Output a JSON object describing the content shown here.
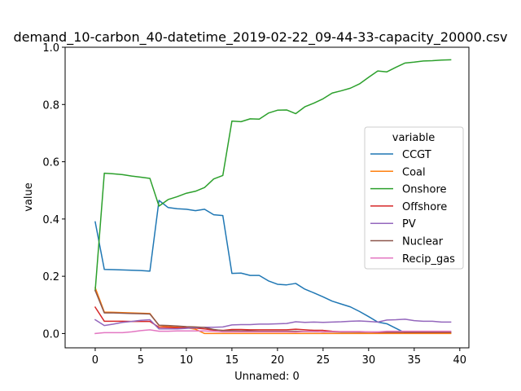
{
  "chart_data": {
    "type": "line",
    "title": "demand_10-carbon_40-datetime_2019-02-22_09-44-33-capacity_20000.csv",
    "xlabel": "Unnamed: 0",
    "ylabel": "value",
    "xlim": [
      -3.3,
      41.0
    ],
    "ylim": [
      -0.05,
      1.0
    ],
    "xticks": [
      0,
      5,
      10,
      15,
      20,
      25,
      30,
      35,
      40
    ],
    "yticks": [
      0.0,
      0.2,
      0.4,
      0.6,
      0.8,
      1.0
    ],
    "grid": false,
    "legend": {
      "title": "variable",
      "position": "center-right"
    },
    "x": [
      0,
      1,
      2,
      3,
      4,
      5,
      6,
      7,
      8,
      9,
      10,
      11,
      12,
      13,
      14,
      15,
      16,
      17,
      18,
      19,
      20,
      21,
      22,
      23,
      24,
      25,
      26,
      27,
      28,
      29,
      30,
      31,
      32,
      33,
      34,
      35,
      36,
      37,
      38,
      39
    ],
    "series": [
      {
        "name": "CCGT",
        "color": "#1f77b4",
        "values": [
          0.39,
          0.224,
          0.223,
          0.222,
          0.221,
          0.22,
          0.218,
          0.465,
          0.44,
          0.436,
          0.434,
          0.429,
          0.434,
          0.415,
          0.412,
          0.21,
          0.211,
          0.203,
          0.203,
          0.184,
          0.172,
          0.17,
          0.175,
          0.155,
          0.142,
          0.128,
          0.113,
          0.103,
          0.093,
          0.077,
          0.059,
          0.04,
          0.034,
          0.018,
          0.002,
          0.001,
          0.001,
          0.001,
          0.001,
          0.001
        ]
      },
      {
        "name": "Coal",
        "color": "#ff7f0e",
        "values": [
          0.16,
          0.075,
          0.074,
          0.073,
          0.072,
          0.071,
          0.07,
          0.028,
          0.024,
          0.022,
          0.02,
          0.015,
          0.0,
          0.0,
          0.0,
          0.0,
          0.0,
          0.0,
          0.0,
          0.0,
          0.0,
          0.0,
          0.0,
          0.0,
          0.0,
          0.0,
          0.0,
          0.0,
          0.0,
          0.0,
          0.0,
          0.0,
          0.0,
          0.0,
          0.0,
          0.0,
          0.0,
          0.0,
          0.0,
          0.0
        ]
      },
      {
        "name": "Onshore",
        "color": "#2ca02c",
        "values": [
          0.15,
          0.56,
          0.558,
          0.555,
          0.55,
          0.546,
          0.542,
          0.445,
          0.468,
          0.478,
          0.49,
          0.497,
          0.51,
          0.54,
          0.552,
          0.742,
          0.74,
          0.75,
          0.749,
          0.77,
          0.78,
          0.781,
          0.768,
          0.792,
          0.805,
          0.82,
          0.84,
          0.848,
          0.857,
          0.872,
          0.895,
          0.917,
          0.914,
          0.93,
          0.945,
          0.948,
          0.952,
          0.953,
          0.955,
          0.956
        ]
      },
      {
        "name": "Offshore",
        "color": "#d62728",
        "values": [
          0.092,
          0.043,
          0.043,
          0.043,
          0.042,
          0.042,
          0.042,
          0.022,
          0.021,
          0.02,
          0.02,
          0.019,
          0.016,
          0.012,
          0.011,
          0.014,
          0.014,
          0.013,
          0.013,
          0.013,
          0.013,
          0.013,
          0.015,
          0.013,
          0.011,
          0.011,
          0.008,
          0.006,
          0.006,
          0.005,
          0.005,
          0.004,
          0.004,
          0.004,
          0.004,
          0.004,
          0.004,
          0.004,
          0.004,
          0.004
        ]
      },
      {
        "name": "PV",
        "color": "#9467bd",
        "values": [
          0.048,
          0.028,
          0.033,
          0.039,
          0.042,
          0.046,
          0.048,
          0.016,
          0.016,
          0.016,
          0.018,
          0.02,
          0.022,
          0.022,
          0.023,
          0.03,
          0.031,
          0.031,
          0.033,
          0.033,
          0.034,
          0.035,
          0.041,
          0.039,
          0.04,
          0.039,
          0.04,
          0.041,
          0.043,
          0.044,
          0.042,
          0.04,
          0.047,
          0.048,
          0.05,
          0.045,
          0.043,
          0.043,
          0.04,
          0.04
        ]
      },
      {
        "name": "Nuclear",
        "color": "#8c564b",
        "values": [
          0.15,
          0.072,
          0.072,
          0.071,
          0.07,
          0.069,
          0.068,
          0.029,
          0.028,
          0.026,
          0.024,
          0.023,
          0.021,
          0.014,
          0.01,
          0.01,
          0.009,
          0.009,
          0.008,
          0.008,
          0.008,
          0.008,
          0.008,
          0.007,
          0.007,
          0.006,
          0.006,
          0.005,
          0.005,
          0.005,
          0.005,
          0.005,
          0.005,
          0.005,
          0.005,
          0.005,
          0.005,
          0.005,
          0.005,
          0.005
        ]
      },
      {
        "name": "Recip_gas",
        "color": "#e377c2",
        "values": [
          0.0,
          0.003,
          0.003,
          0.003,
          0.006,
          0.01,
          0.013,
          0.008,
          0.008,
          0.009,
          0.009,
          0.009,
          0.009,
          0.008,
          0.006,
          0.006,
          0.006,
          0.006,
          0.006,
          0.006,
          0.006,
          0.006,
          0.005,
          0.007,
          0.007,
          0.006,
          0.007,
          0.007,
          0.007,
          0.007,
          0.006,
          0.006,
          0.008,
          0.008,
          0.008,
          0.008,
          0.008,
          0.008,
          0.008,
          0.008
        ]
      }
    ]
  }
}
